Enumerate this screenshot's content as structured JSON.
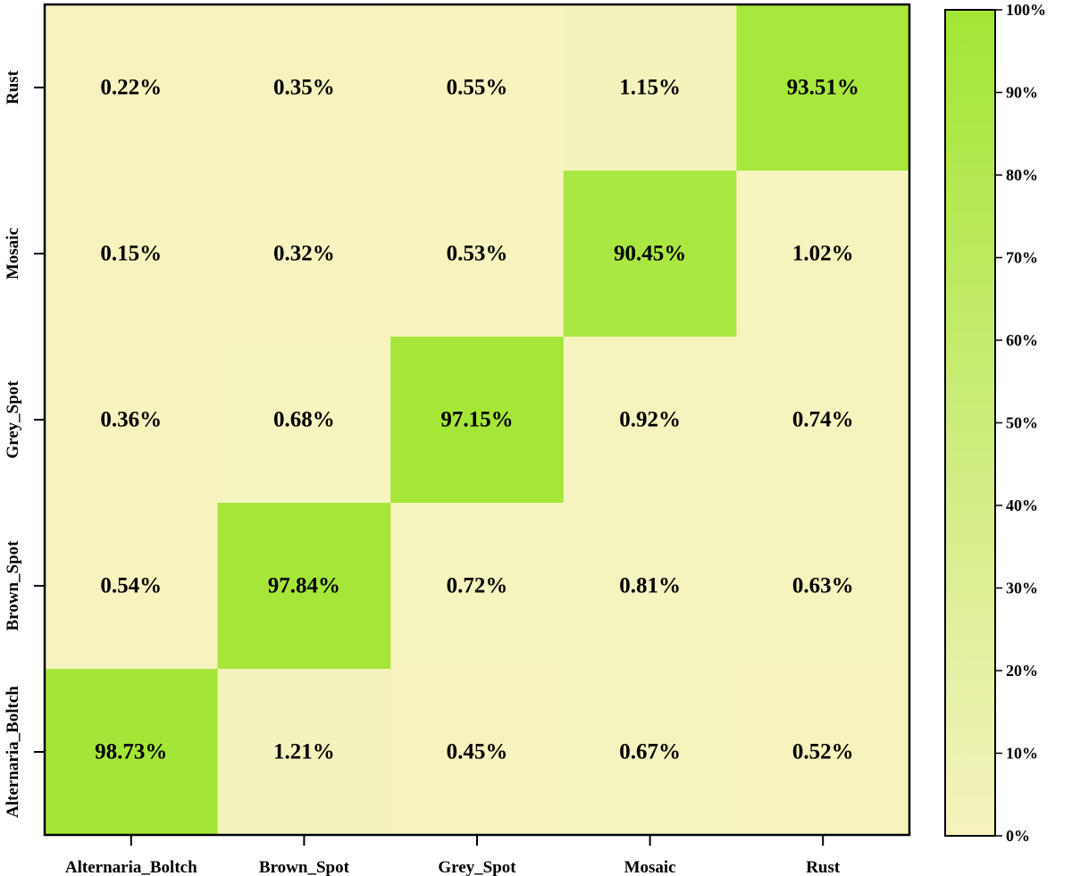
{
  "colors": {
    "low": "#f6f3bf",
    "high": "#a3e635",
    "axis": "#000000",
    "text": "#000000"
  },
  "chart_data": {
    "type": "heatmap",
    "x_categories": [
      "Alternaria_Boltch",
      "Brown_Spot",
      "Grey_Spot",
      "Mosaic",
      "Rust"
    ],
    "y_categories_top_to_bottom": [
      "Rust",
      "Mosaic",
      "Grey_Spot",
      "Brown_Spot",
      "Alternaria_Boltch"
    ],
    "values_top_to_bottom": [
      [
        0.22,
        0.35,
        0.55,
        1.15,
        93.51
      ],
      [
        0.15,
        0.32,
        0.53,
        90.45,
        1.02
      ],
      [
        0.36,
        0.68,
        97.15,
        0.92,
        0.74
      ],
      [
        0.54,
        97.84,
        0.72,
        0.81,
        0.63
      ],
      [
        98.73,
        1.21,
        0.45,
        0.67,
        0.52
      ]
    ],
    "value_suffix": "%",
    "title": "",
    "xlabel": "",
    "ylabel": "",
    "colorbar": {
      "min": 0,
      "max": 100,
      "ticks": [
        "0%",
        "10%",
        "20%",
        "30%",
        "40%",
        "50%",
        "60%",
        "70%",
        "80%",
        "90%",
        "100%"
      ],
      "placement": "right"
    },
    "grid": false
  }
}
